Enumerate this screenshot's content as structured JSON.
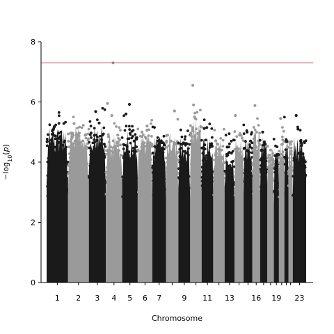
{
  "chart_data": {
    "type": "scatter",
    "xlabel": "Chromosome",
    "ylabel": "−log10(p)",
    "ylim": [
      0,
      8
    ],
    "yticks": [
      0,
      2,
      4,
      6,
      8
    ],
    "significance_line": 7.3,
    "colors": {
      "dark": "#1a1a1a",
      "light": "#9a9a9a",
      "threshold": "#c0504d"
    },
    "chromosomes": [
      {
        "chr": "1",
        "label": "1",
        "start": 0,
        "end": 250,
        "top": 4.9,
        "color": "dark",
        "hits": [
          [
            6,
            4.68
          ],
          [
            55,
            4.6
          ],
          [
            140,
            4.65
          ],
          [
            210,
            4.7
          ]
        ]
      },
      {
        "chr": "2",
        "label": "2",
        "start": 250,
        "end": 493,
        "top": 5.0,
        "color": "light",
        "hits": [
          [
            70,
            5.28
          ],
          [
            100,
            4.9
          ],
          [
            140,
            4.6
          ],
          [
            200,
            4.9
          ]
        ]
      },
      {
        "chr": "3",
        "label": "3",
        "start": 493,
        "end": 691,
        "top": 5.0,
        "color": "dark",
        "hits": [
          [
            80,
            5.68
          ],
          [
            120,
            5.3
          ],
          [
            160,
            4.9
          ],
          [
            180,
            4.6
          ]
        ]
      },
      {
        "chr": "4",
        "label": "4",
        "start": 691,
        "end": 882,
        "top": 4.7,
        "color": "light",
        "hits": [
          [
            20,
            5.95
          ],
          [
            70,
            5.55
          ],
          [
            85,
            7.3
          ],
          [
            140,
            4.9
          ]
        ]
      },
      {
        "chr": "5",
        "label": "5",
        "start": 882,
        "end": 1063,
        "top": 4.8,
        "color": "dark",
        "hits": [
          [
            45,
            5.6
          ],
          [
            85,
            5.92
          ],
          [
            140,
            4.7
          ]
        ]
      },
      {
        "chr": "6",
        "label": "6",
        "start": 1063,
        "end": 1234,
        "top": 4.7,
        "color": "light",
        "hits": [
          [
            50,
            5.0
          ],
          [
            110,
            5.2
          ],
          [
            140,
            4.6
          ]
        ]
      },
      {
        "chr": "7",
        "label": "7",
        "start": 1234,
        "end": 1393,
        "top": 4.6,
        "color": "dark",
        "hits": [
          [
            40,
            4.5
          ],
          [
            100,
            4.4
          ]
        ]
      },
      {
        "chr": "8",
        "label": "",
        "start": 1393,
        "end": 1538,
        "top": 4.8,
        "color": "light",
        "hits": [
          [
            20,
            4.9
          ],
          [
            100,
            5.7
          ],
          [
            60,
            4.7
          ]
        ]
      },
      {
        "chr": "9",
        "label": "9",
        "start": 1538,
        "end": 1676,
        "top": 4.6,
        "color": "dark",
        "hits": [
          [
            30,
            4.6
          ],
          [
            90,
            4.3
          ]
        ]
      },
      {
        "chr": "10",
        "label": "",
        "start": 1676,
        "end": 1810,
        "top": 5.2,
        "color": "light",
        "hits": [
          [
            30,
            6.55
          ],
          [
            40,
            5.9
          ],
          [
            50,
            5.5
          ],
          [
            90,
            4.95
          ]
        ]
      },
      {
        "chr": "11",
        "label": "11",
        "start": 1810,
        "end": 1945,
        "top": 4.6,
        "color": "dark",
        "hits": [
          [
            30,
            5.12
          ],
          [
            60,
            5.15
          ],
          [
            100,
            4.5
          ]
        ]
      },
      {
        "chr": "12",
        "label": "",
        "start": 1945,
        "end": 2078,
        "top": 4.5,
        "color": "light",
        "hits": [
          [
            50,
            4.6
          ],
          [
            100,
            4.4
          ]
        ]
      },
      {
        "chr": "13",
        "label": "13",
        "start": 2078,
        "end": 2193,
        "top": 4.3,
        "color": "dark",
        "hits": [
          [
            30,
            4.5
          ],
          [
            80,
            4.3
          ]
        ]
      },
      {
        "chr": "14",
        "label": "",
        "start": 2193,
        "end": 2300,
        "top": 4.8,
        "color": "light",
        "hits": [
          [
            10,
            5.55
          ],
          [
            60,
            4.9
          ],
          [
            90,
            4.8
          ]
        ]
      },
      {
        "chr": "15",
        "label": "",
        "start": 2300,
        "end": 2402,
        "top": 4.7,
        "color": "dark",
        "hits": [
          [
            40,
            5.0
          ],
          [
            80,
            4.7
          ]
        ]
      },
      {
        "chr": "16",
        "label": "16",
        "start": 2402,
        "end": 2492,
        "top": 4.9,
        "color": "light",
        "hits": [
          [
            30,
            5.88
          ],
          [
            50,
            5.0
          ],
          [
            70,
            4.7
          ]
        ]
      },
      {
        "chr": "17",
        "label": "",
        "start": 2492,
        "end": 2575,
        "top": 4.6,
        "color": "dark",
        "hits": [
          [
            30,
            5.0
          ],
          [
            60,
            4.6
          ]
        ]
      },
      {
        "chr": "18",
        "label": "",
        "start": 2575,
        "end": 2653,
        "top": 4.3,
        "color": "light",
        "hits": [
          [
            40,
            4.4
          ]
        ]
      },
      {
        "chr": "19",
        "label": "19",
        "start": 2653,
        "end": 2712,
        "top": 4.3,
        "color": "dark",
        "hits": [
          [
            30,
            4.2
          ]
        ]
      },
      {
        "chr": "20",
        "label": "",
        "start": 2712,
        "end": 2776,
        "top": 4.6,
        "color": "light",
        "hits": [
          [
            20,
            5.45
          ],
          [
            40,
            4.6
          ]
        ]
      },
      {
        "chr": "21",
        "label": "",
        "start": 2776,
        "end": 2823,
        "top": 4.7,
        "color": "dark",
        "hits": [
          [
            20,
            4.75
          ]
        ]
      },
      {
        "chr": "22",
        "label": "",
        "start": 2823,
        "end": 2874,
        "top": 4.5,
        "color": "light",
        "hits": [
          [
            25,
            4.6
          ]
        ]
      },
      {
        "chr": "23",
        "label": "23",
        "start": 2874,
        "end": 3030,
        "top": 4.6,
        "color": "dark",
        "hits": [
          [
            40,
            5.55
          ],
          [
            60,
            5.1
          ],
          [
            90,
            4.7
          ]
        ]
      }
    ]
  }
}
